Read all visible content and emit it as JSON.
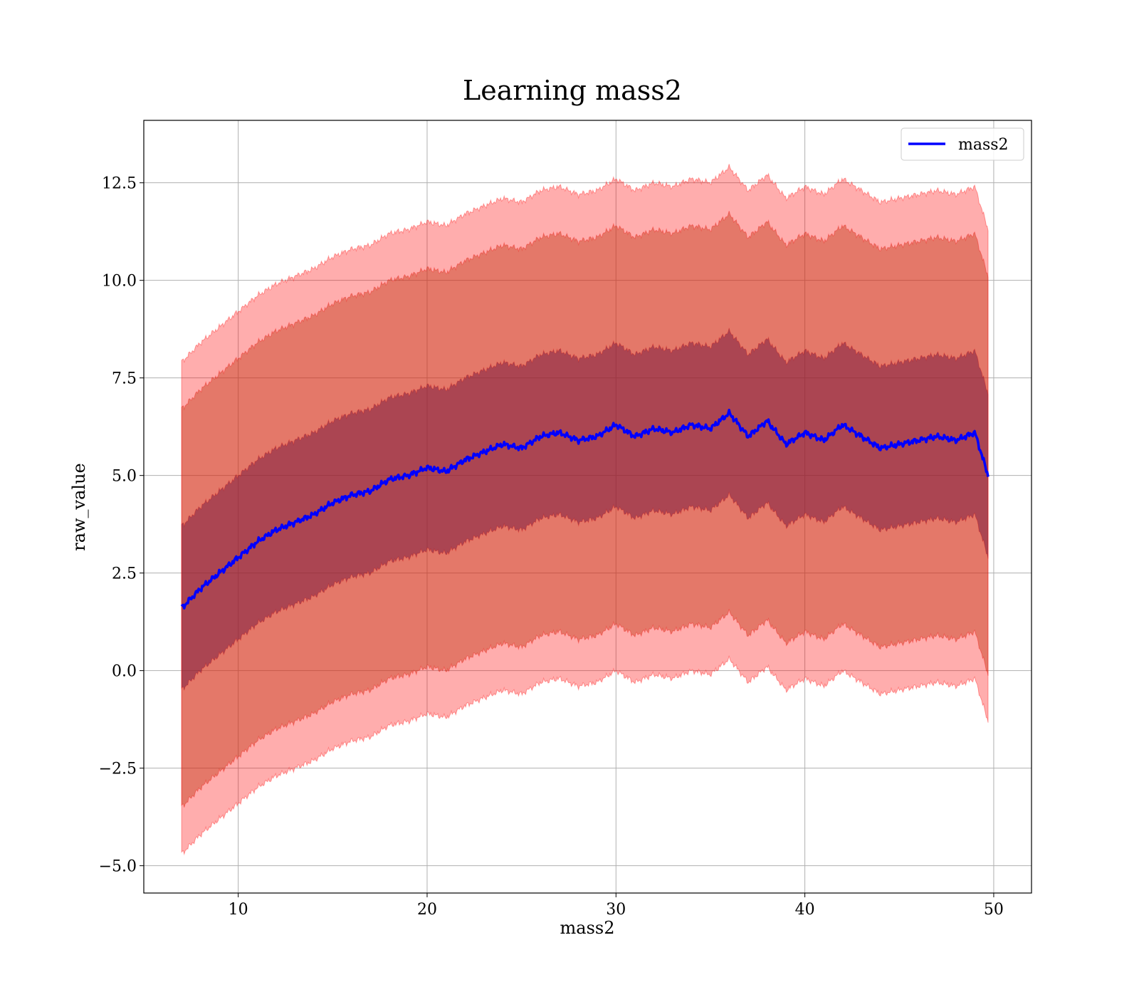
{
  "chart_data": {
    "type": "line",
    "title": "Learning mass2",
    "xlabel": "mass2",
    "ylabel": "raw_value",
    "xlim": [
      5,
      52
    ],
    "ylim": [
      -5.7,
      14.1
    ],
    "xticks": [
      10,
      20,
      30,
      40,
      50
    ],
    "yticks": [
      -5.0,
      -2.5,
      0.0,
      2.5,
      5.0,
      7.5,
      10.0,
      12.5
    ],
    "xtick_labels": [
      "10",
      "20",
      "30",
      "40",
      "50"
    ],
    "ytick_labels": [
      "−5.0",
      "−2.5",
      "0.0",
      "2.5",
      "5.0",
      "7.5",
      "10.0",
      "12.5"
    ],
    "grid": true,
    "legend": {
      "position": "top-right",
      "entries": [
        "mass2"
      ]
    },
    "colors": {
      "mean_line": "#0000ff",
      "band": "#ff0000",
      "grid": "#b0b0b0"
    },
    "x": [
      7,
      8,
      9,
      10,
      11,
      12,
      13,
      14,
      15,
      16,
      17,
      18,
      19,
      20,
      21,
      22,
      23,
      24,
      25,
      26,
      27,
      28,
      29,
      30,
      31,
      32,
      33,
      34,
      35,
      36,
      37,
      38,
      39,
      40,
      41,
      42,
      43,
      44,
      45,
      46,
      47,
      48,
      49,
      49.7
    ],
    "series": [
      {
        "name": "mass2",
        "values": [
          1.6,
          2.1,
          2.5,
          2.9,
          3.3,
          3.6,
          3.8,
          4.0,
          4.3,
          4.5,
          4.6,
          4.9,
          5.0,
          5.2,
          5.1,
          5.4,
          5.6,
          5.8,
          5.7,
          6.0,
          6.1,
          5.9,
          6.0,
          6.3,
          6.0,
          6.2,
          6.1,
          6.3,
          6.2,
          6.6,
          6.0,
          6.4,
          5.8,
          6.1,
          5.9,
          6.3,
          6.0,
          5.7,
          5.8,
          5.9,
          6.0,
          5.9,
          6.1,
          5.0
        ]
      }
    ],
    "bands": [
      {
        "sigma": 1,
        "half_width": 2.1
      },
      {
        "sigma": 2,
        "half_width": 5.1
      },
      {
        "sigma": 3,
        "half_width": 6.3
      }
    ]
  }
}
